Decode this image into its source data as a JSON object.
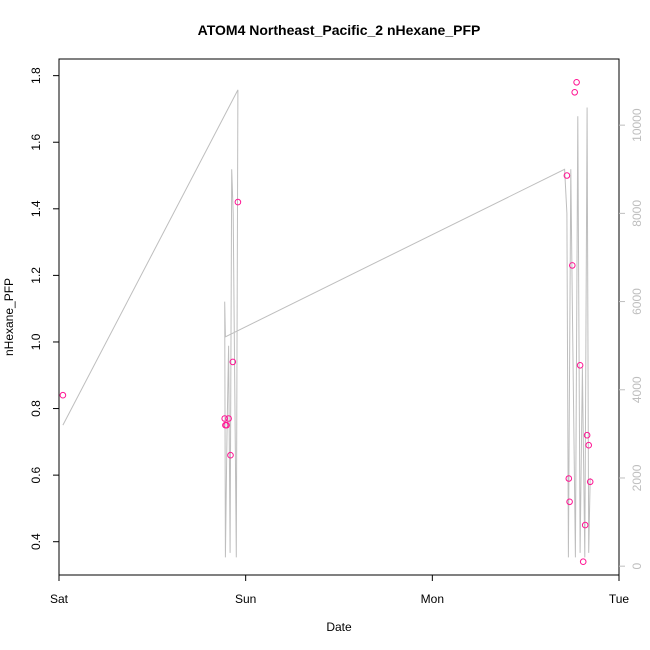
{
  "chart_data": {
    "type": "scatter",
    "title": "ATOM4 Northeast_Pacific_2 nHexane_PFP",
    "xlabel": "Date",
    "ylabel": "nHexane_PFP",
    "x_ticks": [
      "Sat",
      "Sun",
      "Mon",
      "Tue"
    ],
    "x_tick_values": [
      0,
      24,
      48,
      72
    ],
    "xlim": [
      0,
      72
    ],
    "y_ticks": [
      "0.4",
      "0.6",
      "0.8",
      "1.0",
      "1.2",
      "1.4",
      "1.6",
      "1.8"
    ],
    "y_tick_values": [
      0.4,
      0.6,
      0.8,
      1.0,
      1.2,
      1.4,
      1.6,
      1.8
    ],
    "ylim": [
      0.3,
      1.85
    ],
    "y2_ticks": [
      "0",
      "2000",
      "4000",
      "6000",
      "8000",
      "10000"
    ],
    "y2_tick_values": [
      0,
      2000,
      4000,
      6000,
      8000,
      10000
    ],
    "y2lim": [
      -200,
      11500
    ],
    "series": [
      {
        "kind": "points",
        "color": "#ff1493",
        "x": [
          0.5,
          21.3,
          21.4,
          21.55,
          21.8,
          22.05,
          22.35,
          23.0,
          65.3,
          65.55,
          65.65,
          66.0,
          66.3,
          66.55,
          67.0,
          67.4,
          67.65,
          67.9,
          68.1,
          68.3
        ],
        "y": [
          0.84,
          0.77,
          0.75,
          0.75,
          0.77,
          0.66,
          0.94,
          1.42,
          1.5,
          0.59,
          0.52,
          1.23,
          1.75,
          1.78,
          0.93,
          0.34,
          0.45,
          0.72,
          0.69,
          0.58
        ]
      },
      {
        "kind": "line",
        "axis": "right",
        "color": "#bebebe",
        "x": [
          0.5,
          23.0,
          22.8,
          22.4,
          22.2,
          22.0,
          21.8,
          21.6,
          21.4,
          21.3,
          21.4,
          65.0,
          65.3,
          65.5,
          65.8,
          66.0,
          66.4,
          66.7,
          67.0,
          67.3,
          67.6,
          67.9,
          68.1,
          68.3
        ],
        "y": [
          3200,
          10800,
          200,
          8000,
          9000,
          300,
          5000,
          3000,
          200,
          6000,
          5200,
          9000,
          8000,
          200,
          9000,
          6000,
          200,
          10200,
          300,
          4500,
          200,
          10400,
          300,
          2000
        ]
      }
    ]
  }
}
